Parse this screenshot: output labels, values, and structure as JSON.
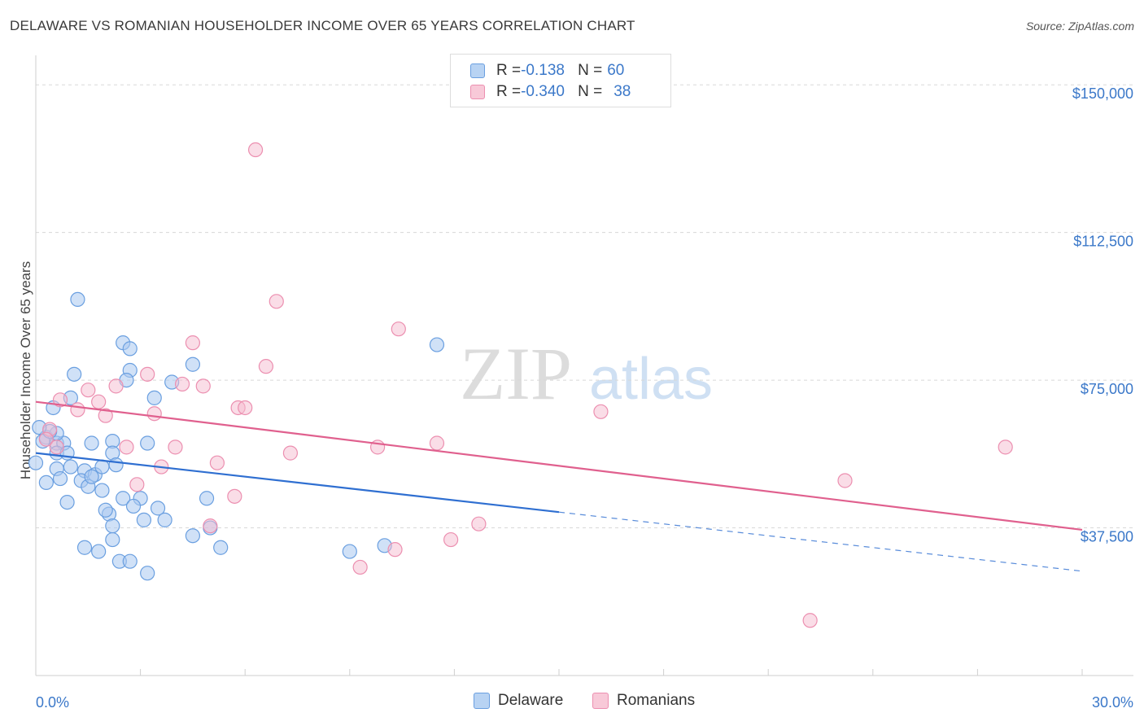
{
  "title": "DELAWARE VS ROMANIAN HOUSEHOLDER INCOME OVER 65 YEARS CORRELATION CHART",
  "source": "Source: ZipAtlas.com",
  "watermark": {
    "zip": "ZIP",
    "atlas": "atlas"
  },
  "legend": {
    "delaware": {
      "r_label": "R =",
      "r_value": "-0.138",
      "n_label": "N =",
      "n_value": "60"
    },
    "romanians": {
      "r_label": "R =",
      "r_value": "-0.340",
      "n_label": "N =",
      "n_value": "38"
    }
  },
  "bottom_legend": {
    "delaware": "Delaware",
    "romanians": "Romanians"
  },
  "colors": {
    "delaware_fill": "#a9c8f0",
    "delaware_stroke": "#6a9fe0",
    "delaware_line": "#2f6fd1",
    "romanians_fill": "#f6bcd0",
    "romanians_stroke": "#ec8fb0",
    "romanians_line": "#e0608e",
    "grid": "#d8d8d8",
    "axis_label": "#3b78c9"
  },
  "chart_data": {
    "type": "scatter",
    "title": "DELAWARE VS ROMANIAN HOUSEHOLDER INCOME OVER 65 YEARS CORRELATION CHART",
    "xlabel": "",
    "ylabel": "Householder Income Over 65 years",
    "xlim": [
      0,
      30
    ],
    "ylim": [
      0,
      155000
    ],
    "x_tick_labels": [
      "0.0%",
      "30.0%"
    ],
    "y_ticks": [
      37500,
      75000,
      112500,
      150000
    ],
    "y_tick_labels": [
      "$37,500",
      "$75,000",
      "$112,500",
      "$150,000"
    ],
    "grid": true,
    "legend_position": "top-center",
    "series": [
      {
        "name": "Delaware",
        "r": -0.138,
        "n": 60,
        "trend": {
          "x0": 0,
          "y0": 56500,
          "x1": 15,
          "y1": 41500,
          "dashed_to_x": 30,
          "dashed_to_y": 26500
        },
        "points": [
          [
            1.2,
            95500
          ],
          [
            2.5,
            84500
          ],
          [
            2.7,
            83000
          ],
          [
            11.5,
            84000
          ],
          [
            1.1,
            76500
          ],
          [
            2.7,
            77500
          ],
          [
            2.6,
            75000
          ],
          [
            4.5,
            79000
          ],
          [
            3.9,
            74500
          ],
          [
            1.0,
            70500
          ],
          [
            3.4,
            70500
          ],
          [
            0.5,
            68000
          ],
          [
            0.3,
            60500
          ],
          [
            0.2,
            59500
          ],
          [
            0.6,
            59000
          ],
          [
            0.8,
            59000
          ],
          [
            1.6,
            59000
          ],
          [
            2.2,
            59500
          ],
          [
            3.2,
            59000
          ],
          [
            0.6,
            61500
          ],
          [
            0.4,
            62000
          ],
          [
            0.6,
            56500
          ],
          [
            0.9,
            56500
          ],
          [
            2.2,
            56500
          ],
          [
            0.0,
            54000
          ],
          [
            0.6,
            52500
          ],
          [
            1.0,
            53000
          ],
          [
            1.4,
            52000
          ],
          [
            1.7,
            51000
          ],
          [
            1.9,
            53000
          ],
          [
            2.3,
            53500
          ],
          [
            0.3,
            49000
          ],
          [
            0.7,
            50000
          ],
          [
            1.3,
            49500
          ],
          [
            1.5,
            48000
          ],
          [
            1.6,
            50500
          ],
          [
            0.9,
            44000
          ],
          [
            2.5,
            45000
          ],
          [
            3.0,
            45000
          ],
          [
            2.8,
            43000
          ],
          [
            3.5,
            42500
          ],
          [
            4.9,
            45000
          ],
          [
            3.1,
            39500
          ],
          [
            3.7,
            39500
          ],
          [
            2.1,
            41000
          ],
          [
            2.2,
            38000
          ],
          [
            5.0,
            37500
          ],
          [
            4.5,
            35500
          ],
          [
            2.2,
            34500
          ],
          [
            1.4,
            32500
          ],
          [
            1.8,
            31500
          ],
          [
            5.3,
            32500
          ],
          [
            9.0,
            31500
          ],
          [
            10.0,
            33000
          ],
          [
            2.4,
            29000
          ],
          [
            2.7,
            29000
          ],
          [
            3.2,
            26000
          ],
          [
            0.1,
            63000
          ],
          [
            1.9,
            47000
          ],
          [
            2.0,
            42000
          ]
        ]
      },
      {
        "name": "Romanians",
        "r": -0.34,
        "n": 38,
        "trend": {
          "x0": 0,
          "y0": 69500,
          "x1": 30,
          "y1": 37000
        },
        "points": [
          [
            6.3,
            133500
          ],
          [
            6.9,
            95000
          ],
          [
            10.4,
            88000
          ],
          [
            4.5,
            84500
          ],
          [
            6.6,
            78500
          ],
          [
            3.2,
            76500
          ],
          [
            2.3,
            73500
          ],
          [
            1.5,
            72500
          ],
          [
            4.2,
            74000
          ],
          [
            4.8,
            73500
          ],
          [
            0.7,
            70000
          ],
          [
            1.8,
            69500
          ],
          [
            5.8,
            68000
          ],
          [
            6.0,
            68000
          ],
          [
            1.2,
            67500
          ],
          [
            3.4,
            66500
          ],
          [
            2.0,
            66000
          ],
          [
            16.2,
            67000
          ],
          [
            0.4,
            62500
          ],
          [
            0.3,
            60000
          ],
          [
            0.6,
            58000
          ],
          [
            2.6,
            58000
          ],
          [
            4.0,
            58000
          ],
          [
            7.3,
            56500
          ],
          [
            9.8,
            58000
          ],
          [
            11.5,
            59000
          ],
          [
            27.8,
            58000
          ],
          [
            3.6,
            53000
          ],
          [
            5.2,
            54000
          ],
          [
            2.9,
            48500
          ],
          [
            5.7,
            45500
          ],
          [
            23.2,
            49500
          ],
          [
            5.0,
            38000
          ],
          [
            12.7,
            38500
          ],
          [
            11.9,
            34500
          ],
          [
            10.3,
            32000
          ],
          [
            9.3,
            27500
          ],
          [
            22.2,
            14000
          ]
        ]
      }
    ]
  }
}
